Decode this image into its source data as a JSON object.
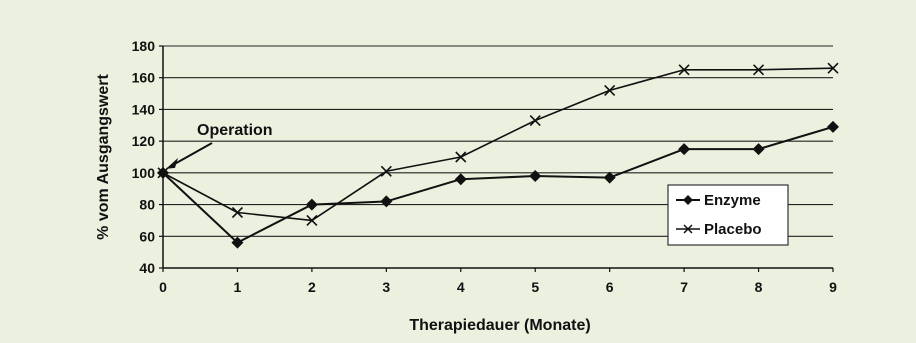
{
  "chart_data": {
    "type": "line",
    "x": [
      0,
      1,
      2,
      3,
      4,
      5,
      6,
      7,
      8,
      9
    ],
    "xlabel": "Therapiedauer (Monate)",
    "ylabel": "% vom Ausgangswert",
    "xlim": [
      0,
      9
    ],
    "ylim": [
      40,
      180
    ],
    "x_ticks": [
      "0",
      "1",
      "2",
      "3",
      "4",
      "5",
      "6",
      "7",
      "8",
      "9"
    ],
    "y_ticks": [
      "40",
      "60",
      "80",
      "100",
      "120",
      "140",
      "160",
      "180"
    ],
    "grid": true,
    "legend_position": "right",
    "series": [
      {
        "name": "Enzyme",
        "marker": "diamond-filled",
        "values": [
          100,
          56,
          80,
          82,
          96,
          98,
          97,
          115,
          115,
          129
        ]
      },
      {
        "name": "Placebo",
        "marker": "x",
        "values": [
          100,
          75,
          70,
          101,
          110,
          133,
          152,
          165,
          165,
          166
        ]
      }
    ],
    "annotations": [
      {
        "text": "Operation",
        "x": 0,
        "y": 100
      }
    ]
  },
  "colors": {
    "background": "#ecf1df",
    "line": "#111111",
    "grid": "#222222",
    "legend_bg": "#ffffff"
  }
}
